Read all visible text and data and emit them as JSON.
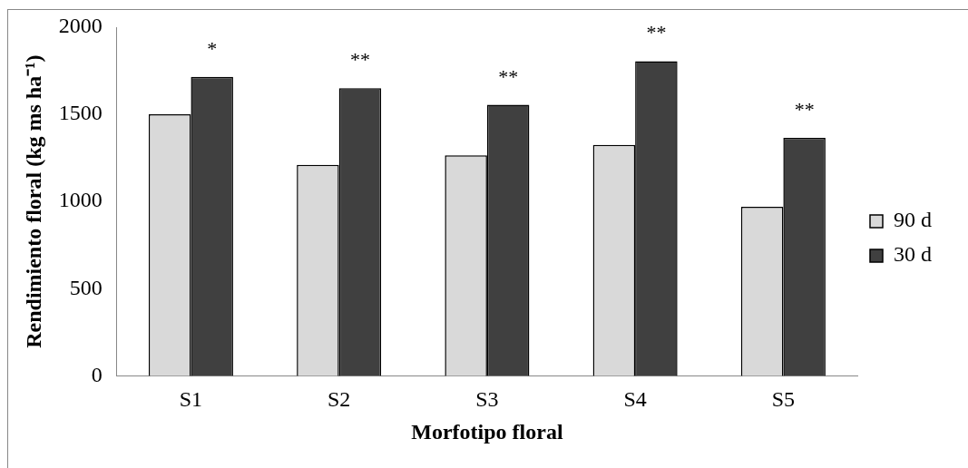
{
  "chart_data": {
    "type": "bar",
    "xlabel": "Morfotipo floral",
    "ylabel": "Rendimiento floral (kg ms ha⁻¹)",
    "categories": [
      "S1",
      "S2",
      "S3",
      "S4",
      "S5"
    ],
    "series": [
      {
        "name": "90 d",
        "color": "#d9d9d9",
        "values": [
          1500,
          1210,
          1265,
          1325,
          970
        ]
      },
      {
        "name": "30 d",
        "color": "#404040",
        "values": [
          1715,
          1650,
          1555,
          1805,
          1365
        ]
      }
    ],
    "ylim": [
      0,
      2000
    ],
    "yticks": [
      0,
      500,
      1000,
      1500,
      2000
    ],
    "legend": "right",
    "annotations": [
      {
        "text": "*",
        "x": "S1",
        "y": 1715
      },
      {
        "text": "**",
        "x": "S2",
        "y": 1650
      },
      {
        "text": "**",
        "x": "S3",
        "y": 1555
      },
      {
        "text": "**",
        "x": "S4",
        "y": 1805
      },
      {
        "text": "**",
        "x": "S5",
        "y": 1365
      }
    ]
  }
}
